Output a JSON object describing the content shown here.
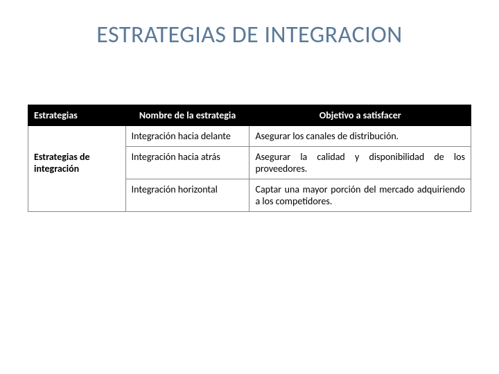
{
  "title": "ESTRATEGIAS DE INTEGRACION",
  "table": {
    "headers": {
      "col1": "Estrategias",
      "col2": "Nombre de la estrategia",
      "col3": "Objetivo a satisfacer"
    },
    "group_label": "Estrategias de integración",
    "rows": [
      {
        "strategy": "Integración hacia delante",
        "objective": "Asegurar los canales de distribución."
      },
      {
        "strategy": "Integración hacia atrás",
        "objective": "Asegurar la calidad y disponibilidad de los proveedores."
      },
      {
        "strategy": "Integración horizontal",
        "objective": "Captar una mayor porción del mercado adquiriendo a los competidores."
      }
    ]
  },
  "styling": {
    "title_color": "#5a7a9a",
    "title_fontsize": 34,
    "header_bg": "#000000",
    "header_text_color": "#ffffff",
    "cell_border_color": "#888888",
    "body_bg": "#ffffff",
    "body_text_color": "#000000",
    "font_family": "Calibri",
    "body_fontsize": 14,
    "col_widths_pct": [
      22,
      28,
      50
    ]
  }
}
